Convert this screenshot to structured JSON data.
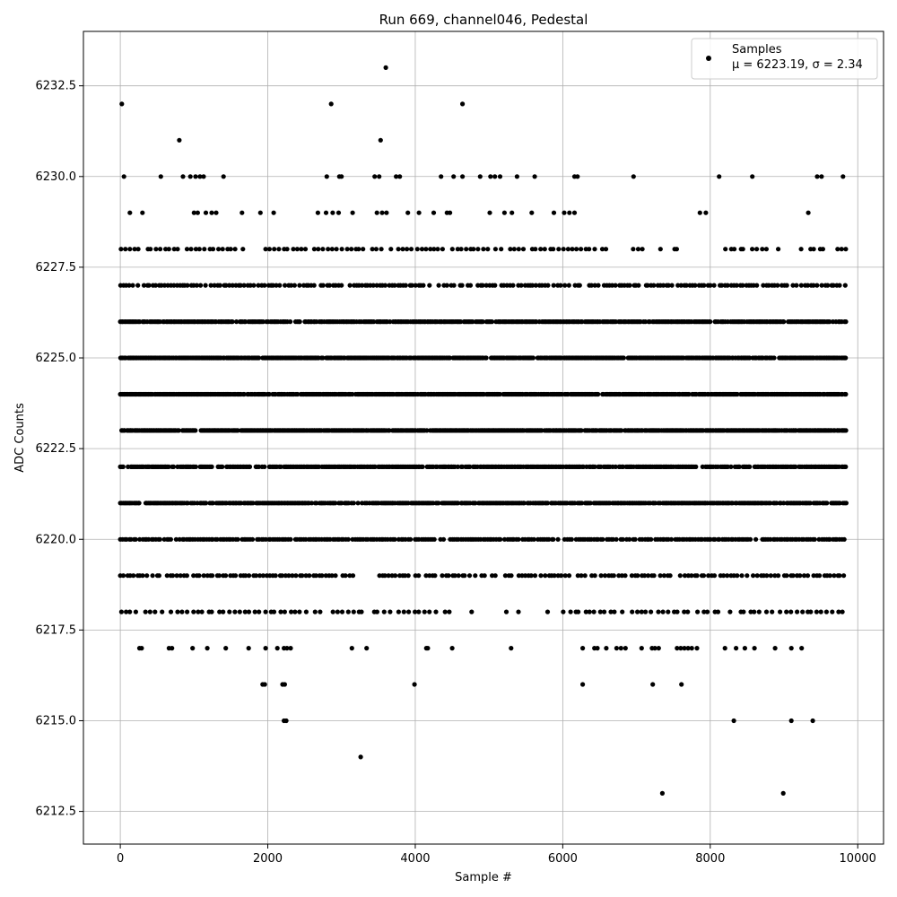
{
  "chart_data": {
    "type": "scatter",
    "title": "Run 669, channel046, Pedestal",
    "xlabel": "Sample #",
    "ylabel": "ADC Counts",
    "xlim": [
      -500,
      10350
    ],
    "ylim": [
      6211.6,
      6234.0
    ],
    "x_ticks": [
      0,
      2000,
      4000,
      6000,
      8000,
      10000
    ],
    "y_ticks": [
      6212.5,
      6215.0,
      6217.5,
      6220.0,
      6222.5,
      6225.0,
      6227.5,
      6230.0,
      6232.5
    ],
    "x_tick_labels": [
      "0",
      "2000",
      "4000",
      "6000",
      "8000",
      "10000"
    ],
    "y_tick_labels": [
      "6212.5",
      "6215.0",
      "6217.5",
      "6220.0",
      "6222.5",
      "6225.0",
      "6227.5",
      "6230.0",
      "6232.5"
    ],
    "grid": true,
    "legend_position": "top-right",
    "series": [
      {
        "name": "Samples",
        "stats_label": "μ = 6223.19, σ = 2.34",
        "color": "#000000",
        "points": [
          [
            20,
            6232
          ],
          [
            3600,
            6233
          ],
          [
            2860,
            6232
          ],
          [
            4640,
            6232
          ],
          [
            800,
            6231
          ],
          [
            3530,
            6231
          ],
          [
            50,
            6230
          ],
          [
            550,
            6230
          ],
          [
            850,
            6230
          ],
          [
            950,
            6230
          ],
          [
            1020,
            6230
          ],
          [
            1080,
            6230
          ],
          [
            1130,
            6230
          ],
          [
            1400,
            6230
          ],
          [
            2800,
            6230
          ],
          [
            2970,
            6230
          ],
          [
            3000,
            6230
          ],
          [
            3450,
            6230
          ],
          [
            3510,
            6230
          ],
          [
            3740,
            6230
          ],
          [
            3790,
            6230
          ],
          [
            4350,
            6230
          ],
          [
            4520,
            6230
          ],
          [
            4640,
            6230
          ],
          [
            4880,
            6230
          ],
          [
            5020,
            6230
          ],
          [
            5080,
            6230
          ],
          [
            5150,
            6230
          ],
          [
            5380,
            6230
          ],
          [
            5620,
            6230
          ],
          [
            6160,
            6230
          ],
          [
            6200,
            6230
          ],
          [
            6960,
            6230
          ],
          [
            8120,
            6230
          ],
          [
            8570,
            6230
          ],
          [
            9450,
            6230
          ],
          [
            9510,
            6230
          ],
          [
            9800,
            6230
          ],
          [
            130,
            6229
          ],
          [
            300,
            6229
          ],
          [
            1000,
            6229
          ],
          [
            1050,
            6229
          ],
          [
            1160,
            6229
          ],
          [
            1240,
            6229
          ],
          [
            1300,
            6229
          ],
          [
            1650,
            6229
          ],
          [
            1900,
            6229
          ],
          [
            2080,
            6229
          ],
          [
            2680,
            6229
          ],
          [
            2790,
            6229
          ],
          [
            2880,
            6229
          ],
          [
            2960,
            6229
          ],
          [
            3150,
            6229
          ],
          [
            3480,
            6229
          ],
          [
            3550,
            6229
          ],
          [
            3610,
            6229
          ],
          [
            3900,
            6229
          ],
          [
            4050,
            6229
          ],
          [
            4250,
            6229
          ],
          [
            4430,
            6229
          ],
          [
            4470,
            6229
          ],
          [
            5010,
            6229
          ],
          [
            5210,
            6229
          ],
          [
            5310,
            6229
          ],
          [
            5580,
            6229
          ],
          [
            5880,
            6229
          ],
          [
            6020,
            6229
          ],
          [
            6090,
            6229
          ],
          [
            6160,
            6229
          ],
          [
            7860,
            6229
          ],
          [
            7940,
            6229
          ],
          [
            9330,
            6229
          ]
        ],
        "bands": [
          {
            "y": 6228,
            "step": 60,
            "gaps": [
              [
                1700,
                1950
              ],
              [
                6400,
                6950
              ],
              [
                7100,
                8100
              ],
              [
                8800,
                9300
              ]
            ]
          },
          {
            "y": 6227,
            "step": 40,
            "gaps": []
          },
          {
            "y": 6226,
            "step": 20,
            "gaps": []
          },
          {
            "y": 6225,
            "step": 15,
            "gaps": []
          },
          {
            "y": 6224,
            "step": 15,
            "gaps": []
          },
          {
            "y": 6223,
            "step": 15,
            "gaps": []
          },
          {
            "y": 6222,
            "step": 20,
            "gaps": []
          },
          {
            "y": 6221,
            "step": 20,
            "gaps": []
          },
          {
            "y": 6220,
            "step": 30,
            "gaps": []
          },
          {
            "y": 6219,
            "step": 45,
            "gaps": [
              [
                3150,
                3500
              ]
            ]
          },
          {
            "y": 6218,
            "step": 70,
            "gaps": [
              [
                4550,
                6000
              ]
            ]
          }
        ],
        "sparse_points": [
          [
            260,
            6217
          ],
          [
            290,
            6217
          ],
          [
            660,
            6217
          ],
          [
            700,
            6217
          ],
          [
            980,
            6217
          ],
          [
            1180,
            6217
          ],
          [
            1430,
            6217
          ],
          [
            1740,
            6217
          ],
          [
            1970,
            6217
          ],
          [
            2130,
            6217
          ],
          [
            2220,
            6217
          ],
          [
            2260,
            6217
          ],
          [
            2310,
            6217
          ],
          [
            3140,
            6217
          ],
          [
            3340,
            6217
          ],
          [
            4150,
            6217
          ],
          [
            4170,
            6217
          ],
          [
            4500,
            6217
          ],
          [
            5300,
            6217
          ],
          [
            6270,
            6217
          ],
          [
            6430,
            6217
          ],
          [
            6470,
            6217
          ],
          [
            6590,
            6217
          ],
          [
            6730,
            6217
          ],
          [
            6790,
            6217
          ],
          [
            6850,
            6217
          ],
          [
            7070,
            6217
          ],
          [
            7210,
            6217
          ],
          [
            7250,
            6217
          ],
          [
            7300,
            6217
          ],
          [
            7550,
            6217
          ],
          [
            7600,
            6217
          ],
          [
            7650,
            6217
          ],
          [
            7700,
            6217
          ],
          [
            7750,
            6217
          ],
          [
            7820,
            6217
          ],
          [
            8200,
            6217
          ],
          [
            8350,
            6217
          ],
          [
            8470,
            6217
          ],
          [
            8600,
            6217
          ],
          [
            8880,
            6217
          ],
          [
            9100,
            6217
          ],
          [
            9240,
            6217
          ],
          [
            1930,
            6216
          ],
          [
            1960,
            6216
          ],
          [
            2200,
            6216
          ],
          [
            2230,
            6216
          ],
          [
            3990,
            6216
          ],
          [
            6270,
            6216
          ],
          [
            7220,
            6216
          ],
          [
            7610,
            6216
          ],
          [
            2220,
            6215
          ],
          [
            2250,
            6215
          ],
          [
            8320,
            6215
          ],
          [
            9100,
            6215
          ],
          [
            9390,
            6215
          ],
          [
            3260,
            6214
          ],
          [
            7350,
            6213
          ],
          [
            8990,
            6213
          ]
        ]
      }
    ]
  }
}
